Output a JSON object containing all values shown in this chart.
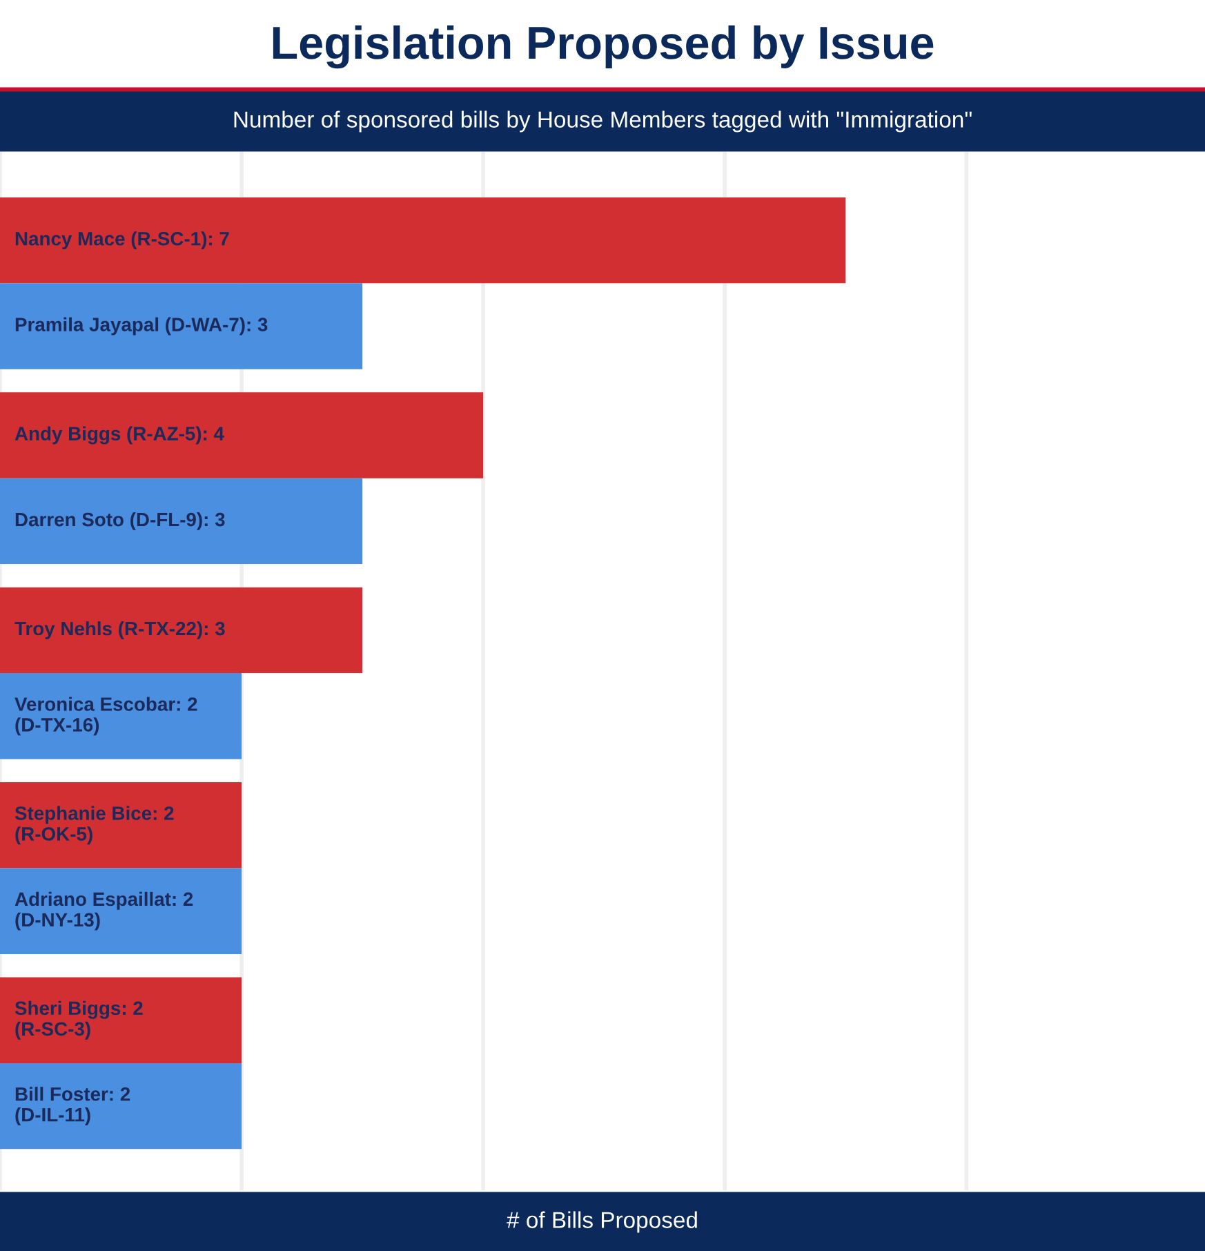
{
  "chart_data": {
    "type": "bar",
    "orientation": "horizontal",
    "title": "Legislation Proposed by Issue",
    "subtitle": "Number of sponsored bills by House Members tagged with \"Immigration\"",
    "xlabel": "# of Bills Proposed",
    "categories": [
      null,
      null,
      null,
      null,
      null,
      null,
      null,
      null,
      null,
      null
    ],
    "values": [
      7,
      3,
      4,
      3,
      3,
      2,
      2,
      2,
      2,
      2
    ],
    "value_labels": [
      "Nancy Mace (R-SC-1): 7",
      "Pramila Jayapal (D-WA-7): 3",
      "Andy Biggs (R-AZ-5): 4",
      "Darren Soto (D-FL-9): 3",
      "Troy Nehls (R-TX-22): 3",
      "Veronica Escobar: 2\n(D-TX-16)",
      "Stephanie Bice: 2\n(R-OK-5)",
      "Adriano Espaillat: 2\n(D-NY-13)",
      "Sheri Biggs: 2\n(R-SC-3)",
      "Bill Foster: 2\n(D-IL-11)"
    ],
    "colors": [
      "#d22f32",
      "#4a8fe0",
      "#d22f32",
      "#4a8fe0",
      "#d22f32",
      "#4a8fe0",
      "#d22f32",
      "#4a8fe0",
      "#d22f32",
      "#4a8fe0"
    ],
    "grid": "x",
    "tick_labels": false
  }
}
